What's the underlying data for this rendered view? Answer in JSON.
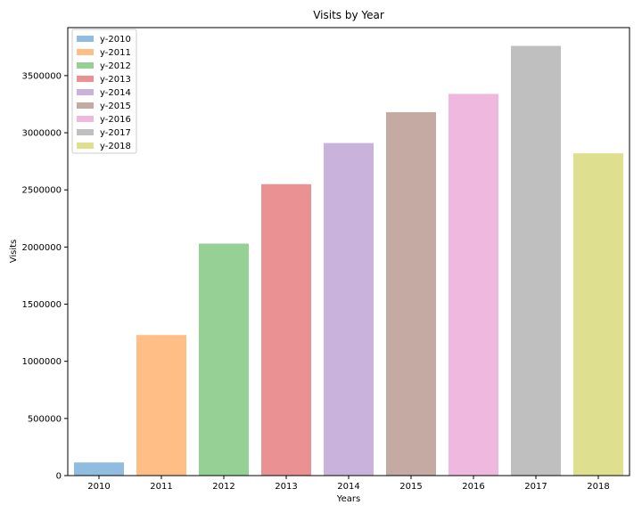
{
  "chart_data": {
    "type": "bar",
    "title": "Visits by Year",
    "xlabel": "Years",
    "ylabel": "Visits",
    "categories": [
      "2010",
      "2011",
      "2012",
      "2013",
      "2014",
      "2015",
      "2016",
      "2017",
      "2018"
    ],
    "values": [
      115000,
      1230000,
      2030000,
      2550000,
      2910000,
      3180000,
      3340000,
      3760000,
      2820000
    ],
    "ylim": [
      0,
      3920000
    ],
    "yticks": [
      0,
      500000,
      1000000,
      1500000,
      2000000,
      2500000,
      3000000,
      3500000
    ],
    "ytick_labels": [
      "0",
      "500000",
      "1000000",
      "1500000",
      "2000000",
      "2500000",
      "3000000",
      "3500000"
    ],
    "legend": {
      "placement": "top-left",
      "entries": [
        "y-2010",
        "y-2011",
        "y-2012",
        "y-2013",
        "y-2014",
        "y-2015",
        "y-2016",
        "y-2017",
        "y-2018"
      ]
    },
    "colors": [
      "#8fbcdf",
      "#ffbe86",
      "#97d095",
      "#ea9293",
      "#c9b3dd",
      "#c5aaa3",
      "#efb9df",
      "#bfbfbf",
      "#dfdf90"
    ],
    "grid": false
  }
}
